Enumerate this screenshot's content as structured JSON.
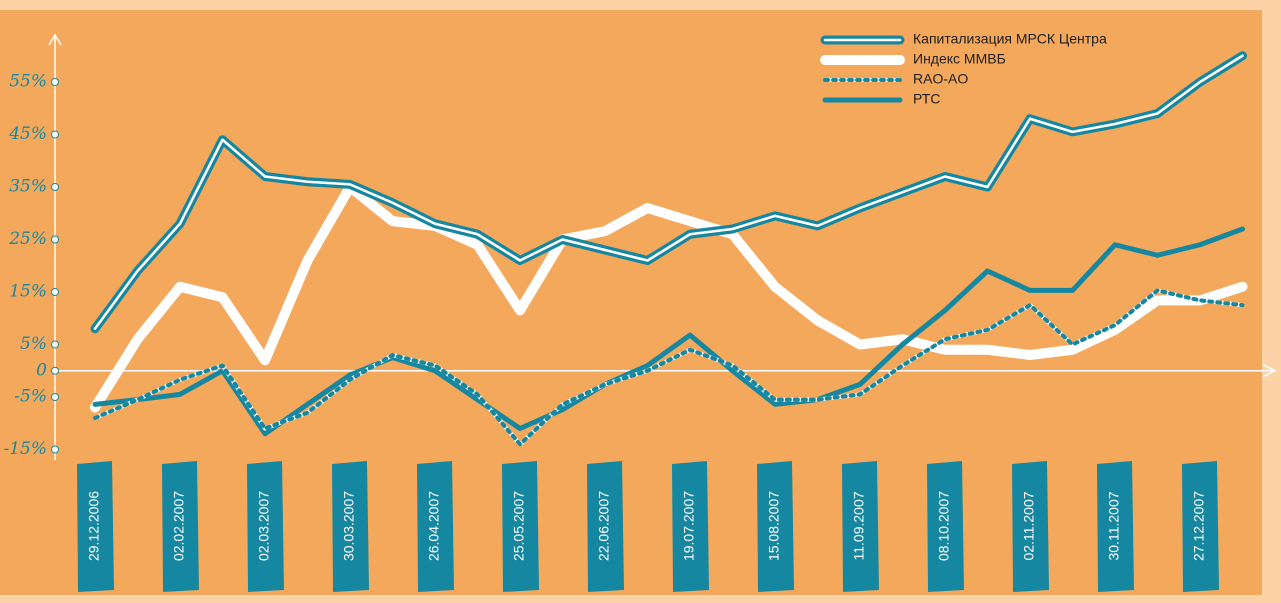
{
  "chart_data": {
    "type": "line",
    "categories": [
      "29.12.2006",
      null,
      "02.02.2007",
      null,
      "02.03.2007",
      null,
      "30.03.2007",
      null,
      "26.04.2007",
      null,
      "25.05.2007",
      null,
      "22.06.2007",
      null,
      "19.07.2007",
      null,
      "15.08.2007",
      null,
      "11.09.2007",
      null,
      "08.10.2007",
      null,
      "02.11.2007",
      null,
      "30.11.2007",
      null,
      "27.12.2007",
      null
    ],
    "series": [
      {
        "name": "Капитализация МРСК Центра",
        "color": "#1687a0",
        "style": "double",
        "values": [
          8,
          19,
          28,
          44,
          37,
          36,
          35.5,
          32,
          28,
          26,
          21,
          25,
          23,
          21,
          26,
          27,
          29.5,
          27.6,
          31,
          34,
          37,
          35,
          48,
          45.5,
          47,
          49,
          55,
          60
        ]
      },
      {
        "name": "Индекс ММВБ",
        "color": "#ffffff",
        "style": "thick",
        "values": [
          -7,
          6,
          16,
          14,
          2,
          21,
          35,
          28.5,
          27.6,
          24,
          11.5,
          25,
          26.6,
          31,
          28.5,
          26,
          16,
          9.6,
          5,
          6,
          4,
          4,
          3,
          4,
          7.8,
          13.4,
          13.4,
          16
        ]
      },
      {
        "name": "RAO-AO",
        "color": "#1687a0",
        "style": "dotted",
        "values": [
          -9,
          -5.5,
          -1.7,
          1,
          -11,
          -8,
          -1.7,
          3,
          1,
          -4.5,
          -14,
          -6.4,
          -2.6,
          0,
          4,
          1,
          -5.5,
          -5.5,
          -4.5,
          1,
          6,
          7.8,
          12.5,
          5,
          8.7,
          15.3,
          13.4,
          12.5
        ]
      },
      {
        "name": "РТС",
        "color": "#1687a0",
        "style": "solid",
        "values": [
          -6.4,
          -5.5,
          -4.5,
          0,
          -12,
          -6.4,
          -0.8,
          2.5,
          0,
          -5.5,
          -11,
          -7.4,
          -2.6,
          1,
          6.8,
          0,
          -6.4,
          -5.5,
          -2.6,
          5,
          11.5,
          19,
          15.3,
          15.3,
          24,
          22,
          24,
          27
        ]
      }
    ],
    "ylim": [
      -17,
      63
    ],
    "yticks": [
      {
        "value": 55,
        "label": "55%"
      },
      {
        "value": 45,
        "label": "45%"
      },
      {
        "value": 35,
        "label": "35%"
      },
      {
        "value": 25,
        "label": "25%"
      },
      {
        "value": 15,
        "label": "15%"
      },
      {
        "value": 5,
        "label": "5%"
      },
      0,
      {
        "value": -5,
        "label": "-5%"
      },
      {
        "value": -15,
        "label": "-15%"
      }
    ],
    "legend": "top-right"
  }
}
